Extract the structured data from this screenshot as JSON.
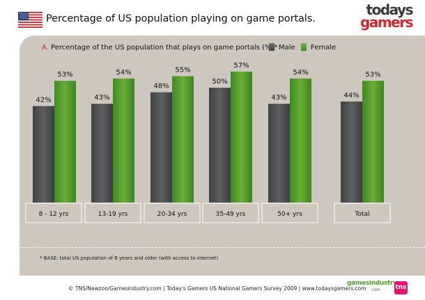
{
  "header": {
    "title": "Percentage of US population playing on game portals.",
    "logo_top": "todays",
    "logo_bottom": "gamers"
  },
  "panel": {
    "subtitle_letter": "A.",
    "subtitle_text": "Percentage of the US population that plays on game portals (%)*"
  },
  "colors": {
    "male": "#4e4f51",
    "female": "#5aa030",
    "panel": "#cdc7bd",
    "accent": "#d7262f"
  },
  "chart_data": {
    "type": "bar",
    "categories": [
      "8 - 12 yrs",
      "13-19 yrs",
      "20-34 yrs",
      "35-49 yrs",
      "50+ yrs",
      "Total"
    ],
    "series": [
      {
        "name": "Male",
        "values": [
          42,
          43,
          48,
          50,
          43,
          44
        ]
      },
      {
        "name": "Female",
        "values": [
          53,
          54,
          55,
          57,
          54,
          53
        ]
      }
    ],
    "value_suffix": "%",
    "ylim": [
      0,
      100
    ],
    "grid": false,
    "legend": "top-right"
  },
  "footnote": "* BASE: total US population of 8 years and older (with access to internet)",
  "footer": {
    "credits": "© TNS/Newzoo/Gamesindustry.com | Today's Gamers US National Gamers Survey 2009 | www.todaysgamers.com",
    "gi_logo": "gamesindustry",
    "gi_suffix": ".com",
    "tns": "tns"
  }
}
